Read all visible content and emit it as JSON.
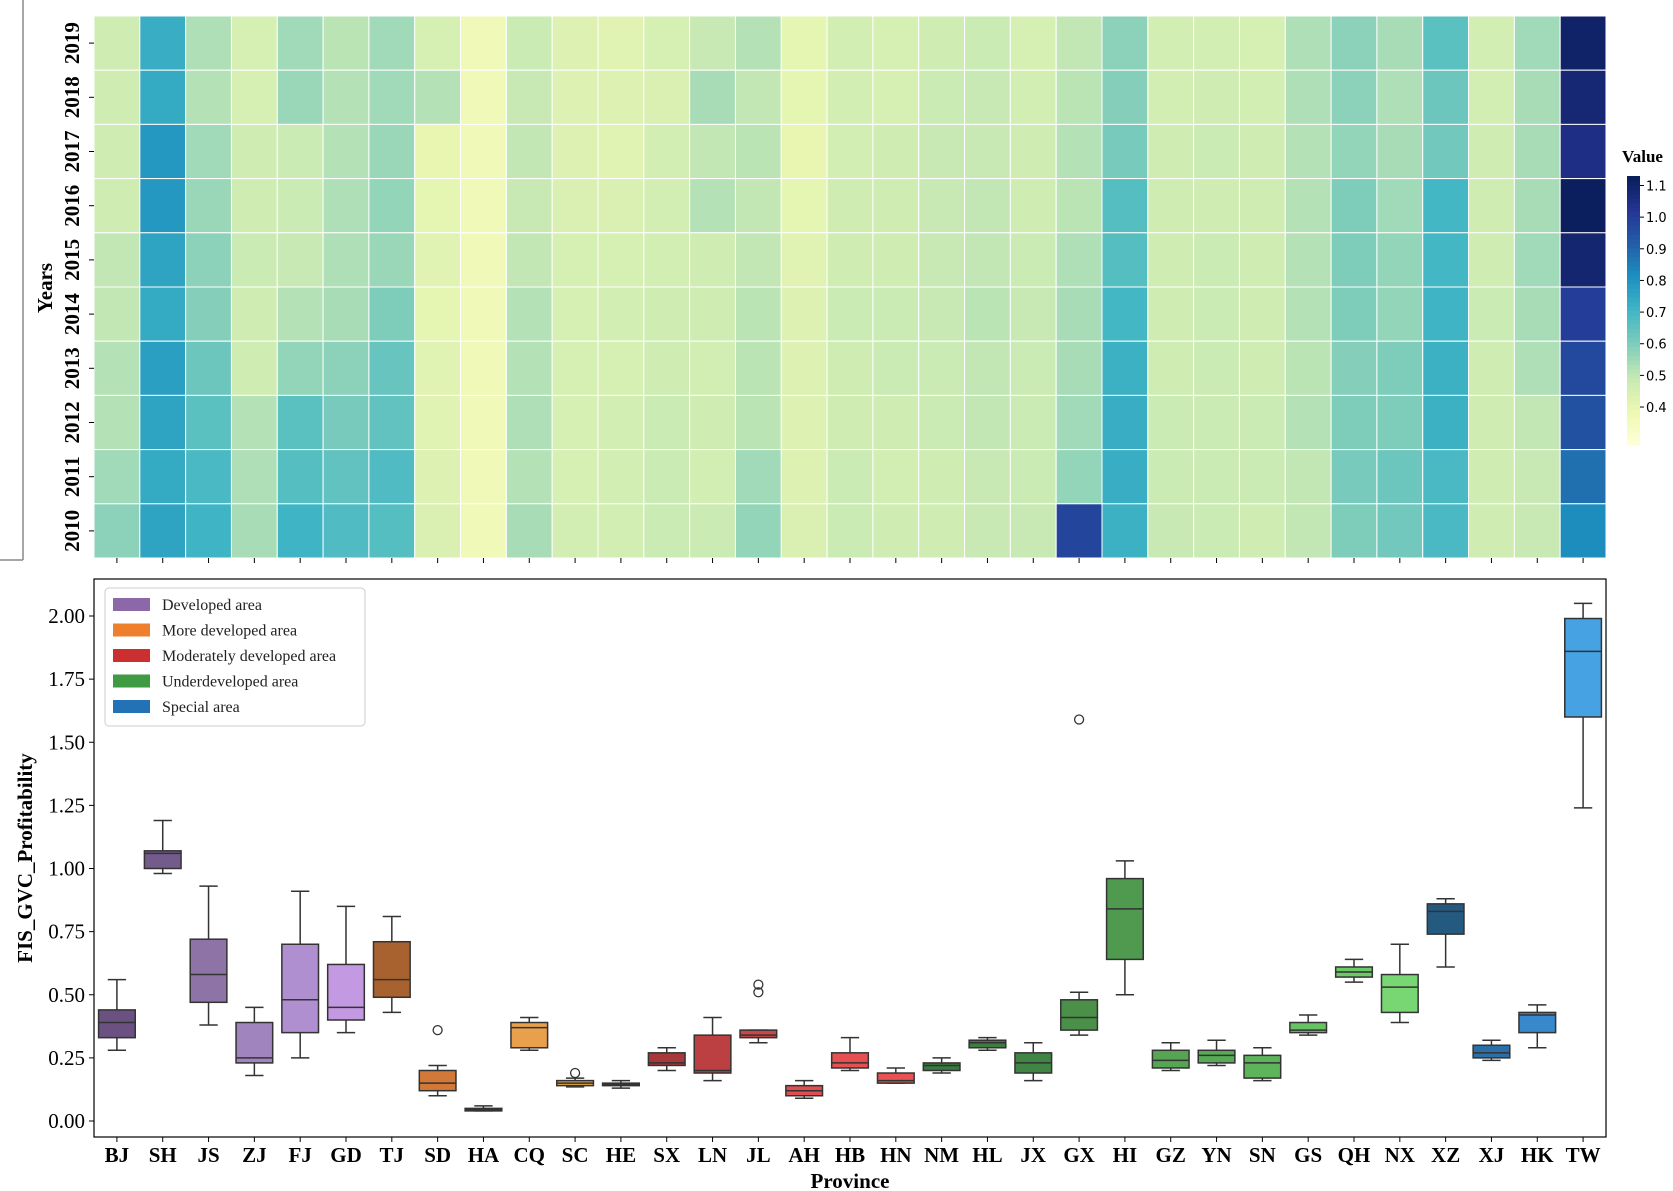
{
  "chart_data": [
    {
      "type": "heatmap",
      "xlabel": "",
      "ylabel": "Years",
      "colorbar_label": "Value",
      "colormap": "YlGnBu",
      "color_range": [
        0.28,
        1.13
      ],
      "colorbar_ticks": [
        "0.4",
        "0.5",
        "0.6",
        "0.7",
        "0.8",
        "0.9",
        "1.0",
        "1.1"
      ],
      "years": [
        "2019",
        "2018",
        "2017",
        "2016",
        "2015",
        "2014",
        "2013",
        "2012",
        "2011",
        "2010"
      ],
      "provinces": [
        "BJ",
        "SH",
        "JS",
        "ZJ",
        "FJ",
        "GD",
        "TJ",
        "SD",
        "HA",
        "CQ",
        "SC",
        "HE",
        "SX",
        "LN",
        "JL",
        "AH",
        "HB",
        "HN",
        "NM",
        "HL",
        "JX",
        "GX",
        "HI",
        "GZ",
        "YN",
        "SN",
        "GS",
        "QH",
        "NX",
        "XZ",
        "XJ",
        "HK",
        "TW"
      ],
      "values_by_province_2019_to_2010": {
        "BJ": [
          0.47,
          0.47,
          0.47,
          0.47,
          0.5,
          0.5,
          0.52,
          0.52,
          0.55,
          0.58
        ],
        "SH": [
          0.73,
          0.74,
          0.79,
          0.79,
          0.76,
          0.74,
          0.77,
          0.76,
          0.74,
          0.76
        ],
        "JS": [
          0.53,
          0.52,
          0.55,
          0.56,
          0.58,
          0.59,
          0.63,
          0.66,
          0.69,
          0.71
        ],
        "ZJ": [
          0.45,
          0.45,
          0.47,
          0.47,
          0.48,
          0.47,
          0.47,
          0.52,
          0.53,
          0.54
        ],
        "FJ": [
          0.55,
          0.56,
          0.48,
          0.48,
          0.49,
          0.52,
          0.57,
          0.66,
          0.67,
          0.71
        ],
        "GD": [
          0.51,
          0.52,
          0.52,
          0.53,
          0.53,
          0.54,
          0.58,
          0.61,
          0.65,
          0.68
        ],
        "TJ": [
          0.55,
          0.55,
          0.56,
          0.57,
          0.56,
          0.6,
          0.64,
          0.65,
          0.68,
          0.67
        ],
        "SD": [
          0.45,
          0.52,
          0.4,
          0.41,
          0.42,
          0.41,
          0.42,
          0.42,
          0.43,
          0.44
        ],
        "HA": [
          0.37,
          0.37,
          0.37,
          0.37,
          0.37,
          0.37,
          0.37,
          0.37,
          0.37,
          0.37
        ],
        "CQ": [
          0.48,
          0.49,
          0.5,
          0.49,
          0.5,
          0.52,
          0.52,
          0.53,
          0.52,
          0.54
        ],
        "SC": [
          0.43,
          0.43,
          0.43,
          0.44,
          0.45,
          0.45,
          0.45,
          0.45,
          0.45,
          0.46
        ],
        "HE": [
          0.42,
          0.43,
          0.42,
          0.44,
          0.45,
          0.46,
          0.45,
          0.46,
          0.46,
          0.46
        ],
        "SX": [
          0.45,
          0.44,
          0.46,
          0.46,
          0.46,
          0.47,
          0.47,
          0.48,
          0.48,
          0.48
        ],
        "LN": [
          0.49,
          0.54,
          0.5,
          0.52,
          0.47,
          0.47,
          0.46,
          0.47,
          0.46,
          0.48
        ],
        "JL": [
          0.52,
          0.5,
          0.51,
          0.5,
          0.5,
          0.51,
          0.51,
          0.51,
          0.55,
          0.57
        ],
        "AH": [
          0.41,
          0.41,
          0.4,
          0.41,
          0.42,
          0.43,
          0.43,
          0.43,
          0.43,
          0.44
        ],
        "HB": [
          0.46,
          0.46,
          0.46,
          0.47,
          0.47,
          0.48,
          0.47,
          0.47,
          0.48,
          0.48
        ],
        "HN": [
          0.45,
          0.45,
          0.47,
          0.47,
          0.47,
          0.48,
          0.48,
          0.47,
          0.46,
          0.47
        ],
        "NM": [
          0.47,
          0.48,
          0.49,
          0.49,
          0.49,
          0.49,
          0.48,
          0.48,
          0.47,
          0.47
        ],
        "HL": [
          0.48,
          0.49,
          0.49,
          0.5,
          0.5,
          0.51,
          0.5,
          0.5,
          0.49,
          0.49
        ],
        "JX": [
          0.45,
          0.46,
          0.47,
          0.47,
          0.48,
          0.49,
          0.48,
          0.48,
          0.48,
          0.49
        ],
        "GX": [
          0.5,
          0.51,
          0.52,
          0.51,
          0.53,
          0.54,
          0.54,
          0.55,
          0.57,
          0.98
        ],
        "HI": [
          0.58,
          0.59,
          0.61,
          0.67,
          0.67,
          0.7,
          0.72,
          0.73,
          0.73,
          0.72
        ],
        "GZ": [
          0.46,
          0.46,
          0.47,
          0.47,
          0.47,
          0.47,
          0.47,
          0.48,
          0.48,
          0.49
        ],
        "YN": [
          0.46,
          0.47,
          0.48,
          0.47,
          0.48,
          0.48,
          0.48,
          0.48,
          0.48,
          0.48
        ],
        "SN": [
          0.45,
          0.46,
          0.47,
          0.47,
          0.47,
          0.47,
          0.47,
          0.48,
          0.48,
          0.47
        ],
        "GS": [
          0.53,
          0.53,
          0.52,
          0.52,
          0.52,
          0.52,
          0.51,
          0.52,
          0.5,
          0.5
        ],
        "QH": [
          0.58,
          0.58,
          0.57,
          0.6,
          0.6,
          0.6,
          0.59,
          0.6,
          0.61,
          0.6
        ],
        "NX": [
          0.54,
          0.53,
          0.54,
          0.55,
          0.57,
          0.57,
          0.6,
          0.6,
          0.63,
          0.62
        ],
        "XZ": [
          0.66,
          0.63,
          0.62,
          0.7,
          0.7,
          0.71,
          0.72,
          0.72,
          0.69,
          0.69
        ],
        "XJ": [
          0.46,
          0.46,
          0.47,
          0.47,
          0.47,
          0.48,
          0.47,
          0.47,
          0.47,
          0.47
        ],
        "HK": [
          0.55,
          0.54,
          0.54,
          0.54,
          0.55,
          0.54,
          0.53,
          0.5,
          0.49,
          0.49
        ],
        "TW": [
          1.1,
          1.08,
          1.05,
          1.12,
          1.09,
          1.0,
          0.97,
          0.95,
          0.88,
          0.82
        ]
      }
    },
    {
      "type": "box",
      "xlabel": "Province",
      "ylabel": "FIS_GVC_Profitability",
      "ylim": [
        -0.06,
        2.13
      ],
      "yticks": [
        "0.00",
        "0.25",
        "0.50",
        "0.75",
        "1.00",
        "1.25",
        "1.50",
        "1.75",
        "2.00"
      ],
      "legend_position": "top-left",
      "legend": [
        {
          "label": "Developed area",
          "color": "#8c68a8"
        },
        {
          "label": "More developed area",
          "color": "#ee7f2d"
        },
        {
          "label": "Moderately developed area",
          "color": "#cc2f30"
        },
        {
          "label": "Underdeveloped area",
          "color": "#3e9a43"
        },
        {
          "label": "Special area",
          "color": "#2372b5"
        }
      ],
      "boxes": [
        {
          "province": "BJ",
          "min": 0.28,
          "q1": 0.33,
          "median": 0.39,
          "q3": 0.44,
          "max": 0.56,
          "fliers": [],
          "color": "#6a5182"
        },
        {
          "province": "SH",
          "min": 0.98,
          "q1": 1.0,
          "median": 1.06,
          "q3": 1.07,
          "max": 1.19,
          "fliers": [],
          "color": "#735b8c"
        },
        {
          "province": "JS",
          "min": 0.38,
          "q1": 0.47,
          "median": 0.58,
          "q3": 0.72,
          "max": 0.93,
          "fliers": [],
          "color": "#8e74a6"
        },
        {
          "province": "ZJ",
          "min": 0.18,
          "q1": 0.23,
          "median": 0.25,
          "q3": 0.39,
          "max": 0.45,
          "fliers": [],
          "color": "#a084bd"
        },
        {
          "province": "FJ",
          "min": 0.25,
          "q1": 0.35,
          "median": 0.48,
          "q3": 0.7,
          "max": 0.91,
          "fliers": [],
          "color": "#b08fd1"
        },
        {
          "province": "GD",
          "min": 0.35,
          "q1": 0.4,
          "median": 0.45,
          "q3": 0.62,
          "max": 0.85,
          "fliers": [],
          "color": "#c39ae2"
        },
        {
          "province": "TJ",
          "min": 0.43,
          "q1": 0.49,
          "median": 0.56,
          "q3": 0.71,
          "max": 0.81,
          "fliers": [],
          "color": "#a8622f"
        },
        {
          "province": "SD",
          "min": 0.1,
          "q1": 0.12,
          "median": 0.15,
          "q3": 0.2,
          "max": 0.22,
          "fliers": [
            0.36
          ],
          "color": "#d27838"
        },
        {
          "province": "HA",
          "min": 0.04,
          "q1": 0.04,
          "median": 0.045,
          "q3": 0.05,
          "max": 0.06,
          "fliers": [],
          "color": "#8f5a38"
        },
        {
          "province": "CQ",
          "min": 0.28,
          "q1": 0.29,
          "median": 0.37,
          "q3": 0.39,
          "max": 0.41,
          "fliers": [],
          "color": "#e9a04c"
        },
        {
          "province": "SC",
          "min": 0.135,
          "q1": 0.14,
          "median": 0.15,
          "q3": 0.16,
          "max": 0.17,
          "fliers": [
            0.19
          ],
          "color": "#e3a642"
        },
        {
          "province": "HE",
          "min": 0.13,
          "q1": 0.14,
          "median": 0.145,
          "q3": 0.15,
          "max": 0.16,
          "fliers": [],
          "color": "#7b3a3c"
        },
        {
          "province": "SX",
          "min": 0.2,
          "q1": 0.22,
          "median": 0.23,
          "q3": 0.27,
          "max": 0.29,
          "fliers": [],
          "color": "#a8383a"
        },
        {
          "province": "LN",
          "min": 0.16,
          "q1": 0.19,
          "median": 0.2,
          "q3": 0.34,
          "max": 0.41,
          "fliers": [],
          "color": "#bc4042"
        },
        {
          "province": "JL",
          "min": 0.31,
          "q1": 0.33,
          "median": 0.34,
          "q3": 0.36,
          "max": 0.36,
          "fliers": [
            0.51,
            0.54
          ],
          "color": "#c8474a"
        },
        {
          "province": "AH",
          "min": 0.09,
          "q1": 0.1,
          "median": 0.12,
          "q3": 0.14,
          "max": 0.16,
          "fliers": [],
          "color": "#e24d4f"
        },
        {
          "province": "HB",
          "min": 0.2,
          "q1": 0.21,
          "median": 0.23,
          "q3": 0.27,
          "max": 0.33,
          "fliers": [],
          "color": "#e75052"
        },
        {
          "province": "HN",
          "min": 0.15,
          "q1": 0.15,
          "median": 0.16,
          "q3": 0.19,
          "max": 0.21,
          "fliers": [],
          "color": "#e85254"
        },
        {
          "province": "NM",
          "min": 0.19,
          "q1": 0.2,
          "median": 0.22,
          "q3": 0.23,
          "max": 0.25,
          "fliers": [],
          "color": "#3b7a3e"
        },
        {
          "province": "HL",
          "min": 0.28,
          "q1": 0.29,
          "median": 0.31,
          "q3": 0.32,
          "max": 0.33,
          "fliers": [],
          "color": "#3d7d40"
        },
        {
          "province": "JX",
          "min": 0.16,
          "q1": 0.19,
          "median": 0.23,
          "q3": 0.27,
          "max": 0.31,
          "fliers": [],
          "color": "#418544"
        },
        {
          "province": "GX",
          "min": 0.34,
          "q1": 0.36,
          "median": 0.41,
          "q3": 0.48,
          "max": 0.51,
          "fliers": [
            1.59
          ],
          "color": "#4a9049"
        },
        {
          "province": "HI",
          "min": 0.5,
          "q1": 0.64,
          "median": 0.84,
          "q3": 0.96,
          "max": 1.03,
          "fliers": [],
          "color": "#4f9a4e"
        },
        {
          "province": "GZ",
          "min": 0.2,
          "q1": 0.21,
          "median": 0.24,
          "q3": 0.28,
          "max": 0.31,
          "fliers": [],
          "color": "#55a553"
        },
        {
          "province": "YN",
          "min": 0.22,
          "q1": 0.23,
          "median": 0.26,
          "q3": 0.28,
          "max": 0.32,
          "fliers": [],
          "color": "#59aa56"
        },
        {
          "province": "SN",
          "min": 0.16,
          "q1": 0.17,
          "median": 0.23,
          "q3": 0.26,
          "max": 0.29,
          "fliers": [],
          "color": "#5db45a"
        },
        {
          "province": "GS",
          "min": 0.34,
          "q1": 0.35,
          "median": 0.36,
          "q3": 0.39,
          "max": 0.42,
          "fliers": [],
          "color": "#66c262"
        },
        {
          "province": "QH",
          "min": 0.55,
          "q1": 0.57,
          "median": 0.59,
          "q3": 0.61,
          "max": 0.64,
          "fliers": [],
          "color": "#6cca67"
        },
        {
          "province": "NX",
          "min": 0.39,
          "q1": 0.43,
          "median": 0.53,
          "q3": 0.58,
          "max": 0.7,
          "fliers": [],
          "color": "#78d673"
        },
        {
          "province": "XZ",
          "min": 0.61,
          "q1": 0.74,
          "median": 0.83,
          "q3": 0.86,
          "max": 0.88,
          "fliers": [],
          "color": "#255a80"
        },
        {
          "province": "XJ",
          "min": 0.24,
          "q1": 0.25,
          "median": 0.27,
          "q3": 0.3,
          "max": 0.32,
          "fliers": [],
          "color": "#2b6fa6"
        },
        {
          "province": "HK",
          "min": 0.29,
          "q1": 0.35,
          "median": 0.42,
          "q3": 0.43,
          "max": 0.46,
          "fliers": [],
          "color": "#3888cc"
        },
        {
          "province": "TW",
          "min": 1.24,
          "q1": 1.6,
          "median": 1.86,
          "q3": 1.99,
          "max": 2.05,
          "fliers": [],
          "color": "#47a2e3"
        }
      ]
    }
  ]
}
